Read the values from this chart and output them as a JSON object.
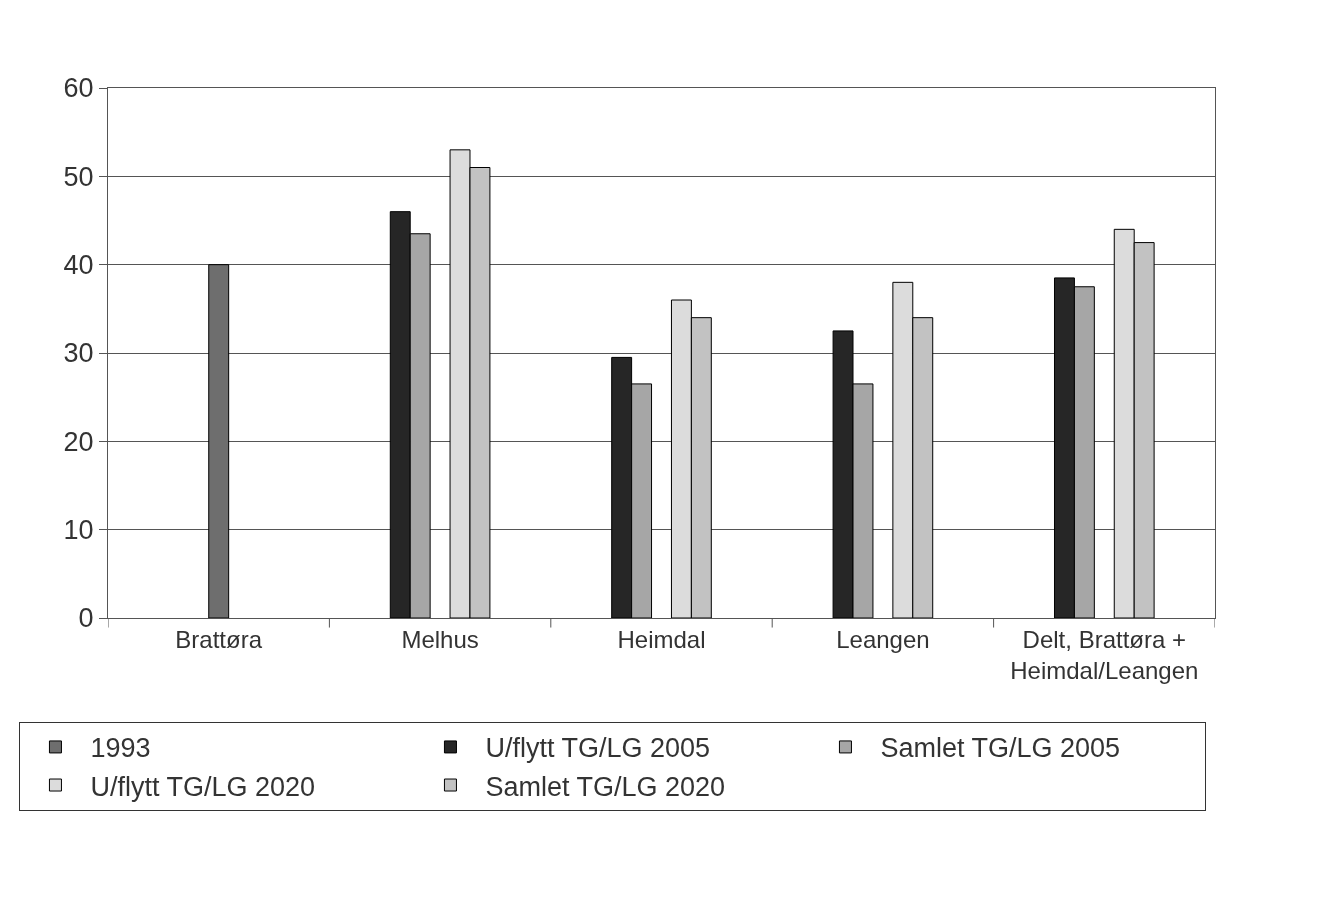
{
  "chart_data": {
    "type": "bar",
    "categories": [
      "Brattøra",
      "Melhus",
      "Heimdal",
      "Leangen",
      "Delt, Brattøra + Heimdal/Leangen"
    ],
    "series": [
      {
        "name": "U/flytt TG/LG 2005",
        "color": "#262626",
        "values": [
          null,
          46,
          29.5,
          32.5,
          38.5
        ]
      },
      {
        "name": "Samlet TG/LG 2005",
        "color": "#a6a6a6",
        "values": [
          null,
          43.5,
          26.5,
          26.5,
          37.5
        ]
      },
      {
        "name": "1993",
        "color": "#6e6e6e",
        "values": [
          40,
          null,
          null,
          null,
          null
        ]
      },
      {
        "name": "U/flytt TG/LG 2020",
        "color": "#dcdcdc",
        "values": [
          null,
          53,
          36,
          38,
          44
        ]
      },
      {
        "name": "Samlet TG/LG 2020",
        "color": "#c2c2c2",
        "values": [
          null,
          51,
          34,
          34,
          42.5
        ]
      }
    ],
    "ylim": [
      0,
      60
    ],
    "yticks": [
      0,
      10,
      20,
      30,
      40,
      50,
      60
    ],
    "grid": "y",
    "legend": "bottom"
  }
}
